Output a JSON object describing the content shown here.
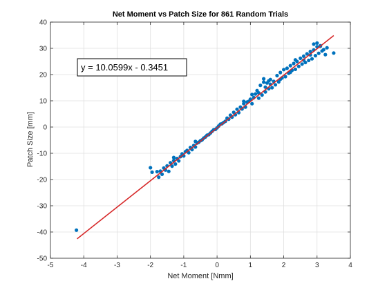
{
  "chart_data": {
    "type": "scatter",
    "title": "Net Moment vs Patch Size for 861 Random Trials",
    "xlabel": "Net Moment [Nmm]",
    "ylabel": "Patch Size [mm]",
    "xlim": [
      -5,
      4
    ],
    "ylim": [
      -50,
      40
    ],
    "xticks": [
      "-5",
      "-4",
      "-3",
      "-2",
      "-1",
      "0",
      "1",
      "2",
      "3",
      "4"
    ],
    "yticks": [
      "-50",
      "-40",
      "-30",
      "-20",
      "-10",
      "0",
      "10",
      "20",
      "30",
      "40"
    ],
    "grid": true,
    "point_color": "#0072BD",
    "fit_color": "#D62728",
    "fit_equation": "y = 10.0599x - 0.3451",
    "fit": {
      "slope": 10.0599,
      "intercept": -0.3451,
      "x_range": [
        -4.2,
        3.5
      ]
    },
    "points": [
      [
        -4.22,
        -39.3
      ],
      [
        -2.0,
        -15.5
      ],
      [
        -1.95,
        -17.2
      ],
      [
        -1.8,
        -17.0
      ],
      [
        -1.75,
        -19.1
      ],
      [
        -1.7,
        -16.8
      ],
      [
        -1.65,
        -18.0
      ],
      [
        -1.6,
        -15.6
      ],
      [
        -1.55,
        -16.4
      ],
      [
        -1.5,
        -14.8
      ],
      [
        -1.45,
        -16.9
      ],
      [
        -1.4,
        -13.6
      ],
      [
        -1.35,
        -14.9
      ],
      [
        -1.3,
        -12.8
      ],
      [
        -1.25,
        -14.1
      ],
      [
        -1.2,
        -12.0
      ],
      [
        -1.15,
        -12.9
      ],
      [
        -1.1,
        -11.3
      ],
      [
        -1.05,
        -10.2
      ],
      [
        -1.0,
        -11.0
      ],
      [
        -0.95,
        -9.4
      ],
      [
        -0.9,
        -8.9
      ],
      [
        -0.85,
        -9.8
      ],
      [
        -0.8,
        -7.8
      ],
      [
        -0.75,
        -8.6
      ],
      [
        -0.7,
        -7.0
      ],
      [
        -0.65,
        -7.6
      ],
      [
        -0.6,
        -6.1
      ],
      [
        -0.55,
        -5.8
      ],
      [
        -0.5,
        -5.2
      ],
      [
        -0.45,
        -4.9
      ],
      [
        -0.4,
        -4.2
      ],
      [
        -0.35,
        -3.8
      ],
      [
        -0.3,
        -3.1
      ],
      [
        -0.25,
        -2.9
      ],
      [
        -0.2,
        -2.3
      ],
      [
        -0.15,
        -1.6
      ],
      [
        -0.1,
        -1.0
      ],
      [
        -0.05,
        -0.9
      ],
      [
        0.0,
        -0.3
      ],
      [
        0.05,
        0.4
      ],
      [
        0.1,
        1.1
      ],
      [
        0.15,
        1.3
      ],
      [
        0.2,
        1.8
      ],
      [
        0.25,
        2.2
      ],
      [
        0.3,
        3.4
      ],
      [
        0.35,
        3.0
      ],
      [
        0.4,
        4.5
      ],
      [
        0.45,
        3.8
      ],
      [
        0.5,
        5.6
      ],
      [
        0.55,
        4.7
      ],
      [
        0.6,
        6.8
      ],
      [
        0.65,
        5.5
      ],
      [
        0.7,
        7.6
      ],
      [
        0.75,
        6.9
      ],
      [
        0.8,
        8.9
      ],
      [
        0.85,
        7.6
      ],
      [
        0.9,
        9.5
      ],
      [
        0.95,
        9.8
      ],
      [
        1.0,
        10.6
      ],
      [
        1.05,
        8.9
      ],
      [
        1.1,
        11.2
      ],
      [
        1.15,
        12.6
      ],
      [
        1.2,
        13.9
      ],
      [
        1.25,
        11.0
      ],
      [
        1.3,
        15.9
      ],
      [
        1.35,
        12.2
      ],
      [
        1.4,
        17.1
      ],
      [
        1.45,
        13.4
      ],
      [
        1.5,
        16.8
      ],
      [
        1.55,
        14.6
      ],
      [
        1.6,
        18.1
      ],
      [
        1.65,
        15.0
      ],
      [
        1.7,
        17.4
      ],
      [
        1.75,
        16.1
      ],
      [
        1.8,
        19.6
      ],
      [
        1.85,
        17.2
      ],
      [
        1.9,
        20.8
      ],
      [
        1.95,
        18.7
      ],
      [
        2.0,
        21.9
      ],
      [
        2.05,
        19.2
      ],
      [
        2.1,
        22.4
      ],
      [
        2.15,
        20.5
      ],
      [
        2.2,
        23.4
      ],
      [
        2.25,
        21.6
      ],
      [
        2.3,
        24.2
      ],
      [
        2.35,
        22.0
      ],
      [
        2.4,
        25.0
      ],
      [
        2.45,
        23.1
      ],
      [
        2.5,
        26.2
      ],
      [
        2.55,
        24.0
      ],
      [
        2.6,
        27.0
      ],
      [
        2.65,
        24.6
      ],
      [
        2.7,
        27.9
      ],
      [
        2.75,
        25.4
      ],
      [
        2.8,
        28.8
      ],
      [
        2.85,
        26.0
      ],
      [
        2.9,
        29.4
      ],
      [
        2.95,
        27.2
      ],
      [
        3.0,
        30.6
      ],
      [
        3.05,
        28.1
      ],
      [
        3.1,
        31.0
      ],
      [
        3.15,
        29.0
      ],
      [
        3.2,
        29.5
      ],
      [
        3.3,
        30.2
      ],
      [
        3.5,
        28.2
      ],
      [
        1.4,
        18.4
      ],
      [
        1.45,
        15.2
      ],
      [
        1.55,
        17.6
      ],
      [
        1.25,
        13.0
      ],
      [
        2.35,
        25.6
      ],
      [
        2.8,
        27.5
      ],
      [
        3.0,
        32.0
      ],
      [
        3.1,
        30.8
      ],
      [
        2.9,
        31.6
      ],
      [
        1.05,
        12.4
      ],
      [
        0.8,
        9.8
      ],
      [
        -0.65,
        -5.5
      ],
      [
        -1.3,
        -11.6
      ],
      [
        2.2,
        20.9
      ],
      [
        1.9,
        18.2
      ],
      [
        1.6,
        16.3
      ],
      [
        2.6,
        25.5
      ],
      [
        3.25,
        27.6
      ]
    ]
  }
}
